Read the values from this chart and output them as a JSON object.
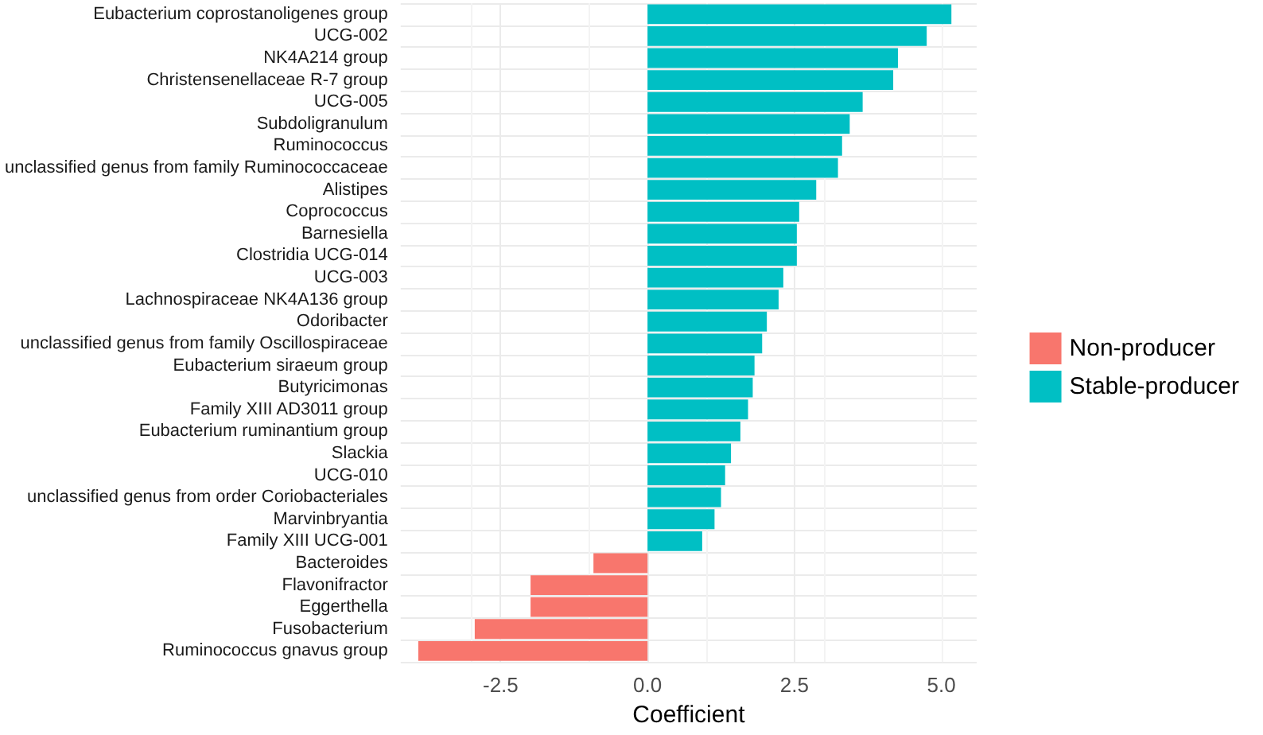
{
  "chart_data": {
    "type": "bar",
    "orientation": "horizontal",
    "xlabel": "Coefficient",
    "categories": [
      "Eubacterium coprostanoligenes group",
      "UCG-002",
      "NK4A214 group",
      "Christensenellaceae R-7 group",
      "UCG-005",
      "Subdoligranulum",
      "Ruminococcus",
      "unclassified genus from family Ruminococcaceae",
      "Alistipes",
      "Coprococcus",
      "Barnesiella",
      "Clostridia UCG-014",
      "UCG-003",
      "Lachnospiraceae NK4A136 group",
      "Odoribacter",
      "unclassified genus from family Oscillospiraceae",
      "Eubacterium siraeum group",
      "Butyricimonas",
      "Family XIII AD3011 group",
      "Eubacterium ruminantium group",
      "Slackia",
      "UCG-010",
      "unclassified genus from order Coriobacteriales",
      "Marvinbryantia",
      "Family XIII UCG-001",
      "Bacteroides",
      "Flavonifractor",
      "Eggerthella",
      "Fusobacterium",
      "Ruminococcus gnavus group"
    ],
    "series": [
      {
        "name": "Non-producer",
        "color": "#f8766d",
        "values": [
          null,
          null,
          null,
          null,
          null,
          null,
          null,
          null,
          null,
          null,
          null,
          null,
          null,
          null,
          null,
          null,
          null,
          null,
          null,
          null,
          null,
          null,
          null,
          null,
          null,
          -0.92,
          -1.99,
          -1.99,
          -2.94,
          -3.9
        ]
      },
      {
        "name": "Stable-producer",
        "color": "#00bfc4",
        "values": [
          5.17,
          4.75,
          4.26,
          4.18,
          3.66,
          3.44,
          3.31,
          3.24,
          2.87,
          2.58,
          2.54,
          2.54,
          2.31,
          2.23,
          2.03,
          1.95,
          1.82,
          1.79,
          1.71,
          1.58,
          1.42,
          1.32,
          1.25,
          1.14,
          0.93,
          null,
          null,
          null,
          null,
          null
        ]
      }
    ],
    "xlim": [
      -4.2,
      5.6
    ],
    "xticks": [
      {
        "value": -2.5,
        "label": "-2.5"
      },
      {
        "value": 0,
        "label": "0.0"
      },
      {
        "value": 2.5,
        "label": "2.5"
      },
      {
        "value": 5,
        "label": "5.0"
      }
    ],
    "grid": true,
    "legend": "right"
  }
}
